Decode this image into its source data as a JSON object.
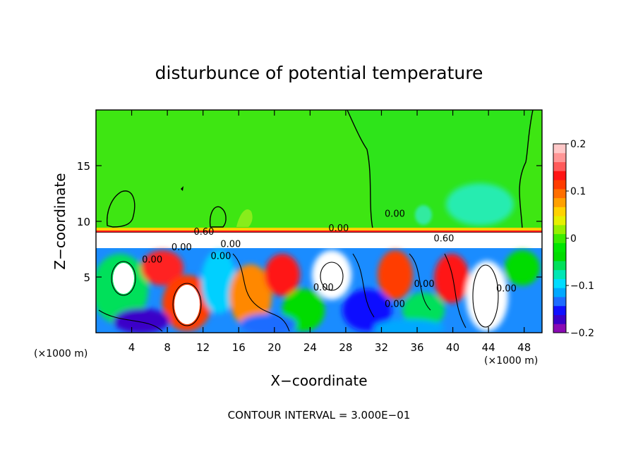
{
  "chart_data": {
    "type": "heatmap",
    "title": "disturbunce of potential temperature",
    "xlabel": "X−coordinate",
    "ylabel": "Z−coordinate",
    "x_unit_left": "(×1000 m)",
    "x_unit_right": "(×1000 m)",
    "footer": "CONTOUR INTERVAL = 3.000E−01",
    "xlim": [
      0,
      50
    ],
    "ylim": [
      0,
      20
    ],
    "xticks": [
      4,
      8,
      12,
      16,
      20,
      24,
      28,
      32,
      36,
      40,
      44,
      48
    ],
    "yticks": [
      5,
      10,
      15
    ],
    "colorbar": {
      "range": [
        -0.2,
        0.2
      ],
      "ticks": [
        "0.2",
        "0.1",
        "0",
        "−0.1",
        "−0.2"
      ],
      "colors": [
        "#8a0ab4",
        "#3a00c8",
        "#1010ff",
        "#1e6cff",
        "#00a8ff",
        "#00dcff",
        "#00e6b4",
        "#00e05a",
        "#00dc00",
        "#00e600",
        "#3cec00",
        "#96f000",
        "#e6f000",
        "#ffd200",
        "#ffa000",
        "#ff6e00",
        "#ff3c00",
        "#ff1414",
        "#ff5a5a",
        "#ff9696",
        "#ffc8c8"
      ]
    },
    "contour_labels": [
      {
        "text": "0.60",
        "x": 12.1,
        "z": 8.8
      },
      {
        "text": "0.00",
        "x": 15.1,
        "z": 7.7
      },
      {
        "text": "0.00",
        "x": 6.3,
        "z": 6.3
      },
      {
        "text": "0.00",
        "x": 9.6,
        "z": 7.4
      },
      {
        "text": "0.00",
        "x": 14.0,
        "z": 6.6
      },
      {
        "text": "0.00",
        "x": 25.5,
        "z": 3.8
      },
      {
        "text": "0.00",
        "x": 27.2,
        "z": 9.1
      },
      {
        "text": "0.00",
        "x": 33.5,
        "z": 10.4
      },
      {
        "text": "0.00",
        "x": 33.5,
        "z": 2.3
      },
      {
        "text": "0.00",
        "x": 36.8,
        "z": 4.1
      },
      {
        "text": "0.60",
        "x": 39.0,
        "z": 8.2
      },
      {
        "text": "0.00",
        "x": 46.0,
        "z": 3.7
      }
    ],
    "grid": false,
    "legend": "colorbar-right"
  }
}
